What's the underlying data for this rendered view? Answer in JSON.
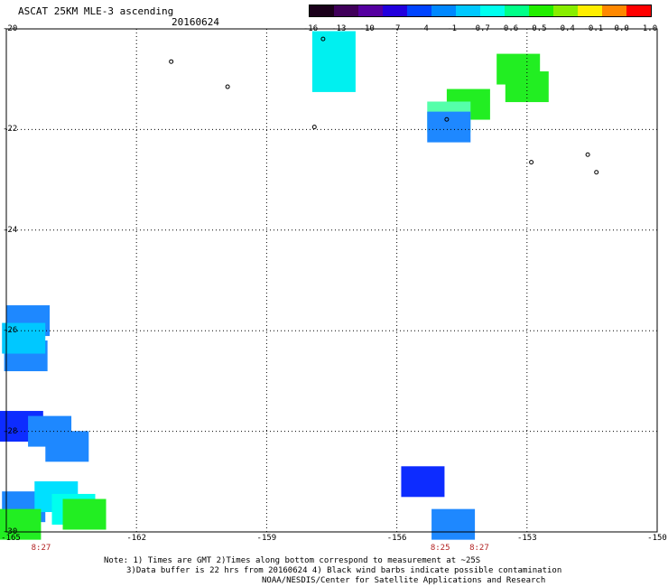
{
  "header": {
    "title": "ASCAT 25KM MLE-3 ascending",
    "date": "20160624"
  },
  "colorbar": {
    "labels": [
      "-16",
      "-13",
      "-10",
      "-7",
      "-4",
      "-1",
      "-0.7",
      "-0.6",
      "-0.5",
      "-0.4",
      "-0.1",
      "0.0",
      "1.0"
    ],
    "colors": [
      "#1a001a",
      "#40005a",
      "#5500a0",
      "#2200dd",
      "#0044ff",
      "#0088ff",
      "#00c8ff",
      "#00ffee",
      "#00ff88",
      "#22ee00",
      "#88ee00",
      "#ffee00",
      "#ff8800",
      "#ff0000"
    ]
  },
  "map": {
    "lon_range": [
      -165,
      -150
    ],
    "lat_range": [
      -30,
      -20
    ],
    "x_ticks": [
      "-165",
      "-162",
      "-159",
      "-156",
      "-153",
      "-150"
    ],
    "y_ticks": [
      "-20",
      "-22",
      "-24",
      "-26",
      "-28",
      "-30"
    ],
    "swaths": [
      {
        "lon": -157.45,
        "lat": -20.35,
        "color": "#00f0f0"
      },
      {
        "lon": -157.45,
        "lat": -20.95,
        "color": "#00f0f0"
      },
      {
        "lon": -153.2,
        "lat": -20.8,
        "color": "#22ee22"
      },
      {
        "lon": -153.0,
        "lat": -21.15,
        "color": "#22ee22"
      },
      {
        "lon": -154.35,
        "lat": -21.5,
        "color": "#22ee22"
      },
      {
        "lon": -154.8,
        "lat": -21.75,
        "color": "#55ffaa"
      },
      {
        "lon": -154.8,
        "lat": -21.95,
        "color": "#1e88ff"
      },
      {
        "lon": -164.5,
        "lat": -25.8,
        "color": "#1e88ff"
      },
      {
        "lon": -164.55,
        "lat": -26.5,
        "color": "#1e88ff"
      },
      {
        "lon": -164.6,
        "lat": -26.15,
        "color": "#00c8ff"
      },
      {
        "lon": -164.65,
        "lat": -27.9,
        "color": "#0d2cff"
      },
      {
        "lon": -164.0,
        "lat": -28.0,
        "color": "#1e88ff"
      },
      {
        "lon": -163.6,
        "lat": -28.3,
        "color": "#1e88ff"
      },
      {
        "lon": -164.6,
        "lat": -29.5,
        "color": "#1e88ff"
      },
      {
        "lon": -163.85,
        "lat": -29.3,
        "color": "#00e0ff"
      },
      {
        "lon": -163.45,
        "lat": -29.55,
        "color": "#00ffee"
      },
      {
        "lon": -163.2,
        "lat": -29.65,
        "color": "#22ee22"
      },
      {
        "lon": -164.7,
        "lat": -29.85,
        "color": "#22ee22"
      },
      {
        "lon": -155.4,
        "lat": -29.0,
        "color": "#0d2cff"
      },
      {
        "lon": -154.7,
        "lat": -29.85,
        "color": "#1e88ff"
      }
    ],
    "islands": [
      {
        "lon": -161.2,
        "lat": -20.65
      },
      {
        "lon": -159.9,
        "lat": -21.15
      },
      {
        "lon": -157.9,
        "lat": -21.95
      },
      {
        "lon": -157.7,
        "lat": -20.2
      },
      {
        "lon": -154.85,
        "lat": -21.8
      },
      {
        "lon": -152.9,
        "lat": -22.65
      },
      {
        "lon": -151.6,
        "lat": -22.5
      },
      {
        "lon": -151.4,
        "lat": -22.85
      }
    ]
  },
  "pass_times": [
    {
      "label": "8:27",
      "lon": -164.2
    },
    {
      "label": "8:25",
      "lon": -155.0
    },
    {
      "label": "8:27",
      "lon": -154.1
    }
  ],
  "notes": {
    "line1": "Note: 1) Times are GMT 2)Times along bottom correspond to measurement at ~25S",
    "line2": "3)Data buffer is 22 hrs from 20160624 4) Black wind barbs indicate possible contamination",
    "line3": "NOAA/NESDIS/Center for Satellite Applications and Research"
  }
}
